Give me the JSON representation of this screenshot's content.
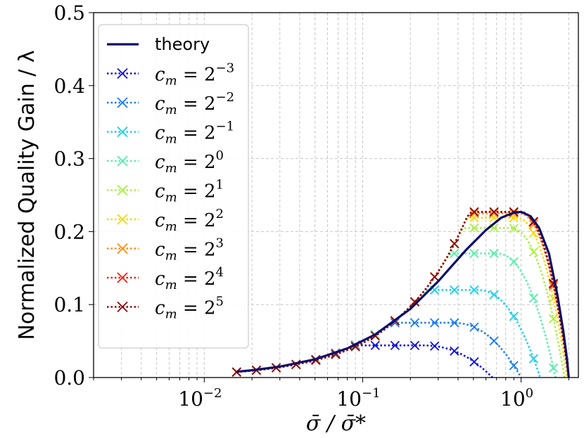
{
  "chart_data": {
    "type": "line",
    "title": "",
    "xlabel": "σ̄ / σ̄*",
    "ylabel": "Normalized Quality Gain / λ",
    "xscale": "log",
    "xlim": [
      0.002,
      2.3
    ],
    "ylim": [
      0.0,
      0.5
    ],
    "grid": true,
    "legend_position": "top-left",
    "x_ticks": [
      {
        "value": 0.01,
        "base": "10",
        "exp": "−2"
      },
      {
        "value": 0.1,
        "base": "10",
        "exp": "−1"
      },
      {
        "value": 1,
        "base": "10",
        "exp": "0"
      }
    ],
    "y_ticks": [
      {
        "value": 0.0,
        "label": "0.0"
      },
      {
        "value": 0.1,
        "label": "0.1"
      },
      {
        "value": 0.2,
        "label": "0.2"
      },
      {
        "value": 0.3,
        "label": "0.3"
      },
      {
        "value": 0.4,
        "label": "0.4"
      },
      {
        "value": 0.5,
        "label": "0.5"
      }
    ],
    "theory": {
      "name": "theory",
      "color": "#0d0d6b",
      "x": [
        0.016,
        0.02,
        0.03,
        0.05,
        0.08,
        0.12,
        0.2,
        0.3,
        0.45,
        0.6,
        0.75,
        0.9,
        1.0,
        1.15,
        1.3,
        1.5,
        1.7,
        1.85,
        1.95,
        2.0
      ],
      "y": [
        0.008,
        0.01,
        0.015,
        0.025,
        0.04,
        0.059,
        0.094,
        0.132,
        0.175,
        0.202,
        0.219,
        0.226,
        0.227,
        0.221,
        0.205,
        0.17,
        0.112,
        0.063,
        0.025,
        0.0
      ]
    },
    "series": [
      {
        "name": "c_m = 2^{-3}",
        "base": "2",
        "exp": "−3",
        "color": "#1010d8",
        "peak_x": 0.24,
        "peak_y": 0.044,
        "x_end": 0.66
      },
      {
        "name": "c_m = 2^{-2}",
        "base": "2",
        "exp": "−2",
        "color": "#1c7cf0",
        "peak_x": 0.37,
        "peak_y": 0.075,
        "x_end": 1.0
      },
      {
        "name": "c_m = 2^{-1}",
        "base": "2",
        "exp": "−1",
        "color": "#10d2f0",
        "peak_x": 0.53,
        "peak_y": 0.12,
        "x_end": 1.32
      },
      {
        "name": "c_m = 2^{0}",
        "base": "2",
        "exp": "0",
        "color": "#52f0a8",
        "peak_x": 0.7,
        "peak_y": 0.17,
        "x_end": 1.65
      },
      {
        "name": "c_m = 2^{1}",
        "base": "2",
        "exp": "1",
        "color": "#a8f040",
        "peak_x": 0.85,
        "peak_y": 0.205,
        "x_end": 1.88
      },
      {
        "name": "c_m = 2^{2}",
        "base": "2",
        "exp": "2",
        "color": "#f6d800",
        "peak_x": 0.93,
        "peak_y": 0.219,
        "x_end": 1.95
      },
      {
        "name": "c_m = 2^{3}",
        "base": "2",
        "exp": "3",
        "color": "#ff8c10",
        "peak_x": 0.97,
        "peak_y": 0.225,
        "x_end": 2.0
      },
      {
        "name": "c_m = 2^{4}",
        "base": "2",
        "exp": "4",
        "color": "#f51e0f",
        "peak_x": 0.98,
        "peak_y": 0.227,
        "x_end": 2.0
      },
      {
        "name": "c_m = 2^{5}",
        "base": "2",
        "exp": "5",
        "color": "#8c0a0a",
        "peak_x": 0.99,
        "peak_y": 0.227,
        "x_end": 2.0
      }
    ],
    "legend_prefix": "c",
    "legend_sub": "m",
    "legend_eq": " = "
  }
}
